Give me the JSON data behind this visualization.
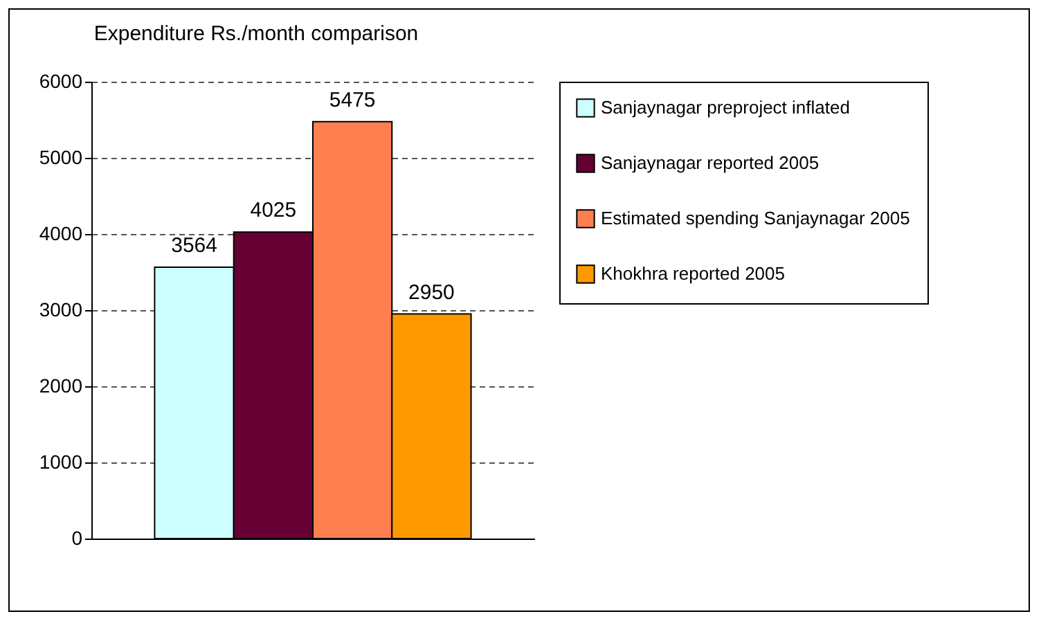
{
  "chart_data": {
    "type": "bar",
    "title": "Expenditure Rs./month comparison",
    "categories": [
      null
    ],
    "series": [
      {
        "name": "Sanjaynagar preproject inflated",
        "color": "#ccffff",
        "values": [
          3564
        ]
      },
      {
        "name": "Sanjaynagar reported 2005",
        "color": "#660033",
        "values": [
          4025
        ]
      },
      {
        "name": "Estimated spending Sanjaynagar 2005",
        "color": "#ff7f50",
        "values": [
          5475
        ]
      },
      {
        "name": "Khokhra reported 2005",
        "color": "#ff9900",
        "values": [
          2950
        ]
      }
    ],
    "ylim": [
      0,
      6000
    ],
    "yticks": [
      0,
      1000,
      2000,
      3000,
      4000,
      5000,
      6000
    ],
    "grid": "y",
    "legend": "right",
    "data_labels": true
  }
}
